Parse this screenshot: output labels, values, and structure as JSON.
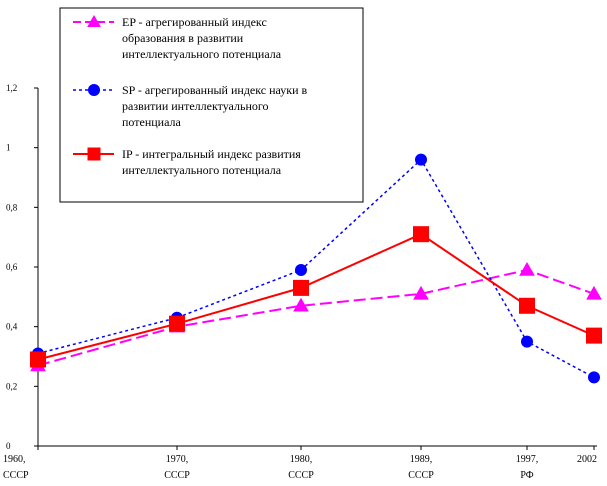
{
  "chart_data": {
    "type": "line",
    "title": "",
    "xlabel": "",
    "ylabel": "",
    "ylim": [
      0,
      1.2
    ],
    "y_ticks": [
      "0",
      "0,2",
      "0,4",
      "0,6",
      "0,8",
      "1",
      "1,2"
    ],
    "y_tick_values": [
      0,
      0.2,
      0.4,
      0.6,
      0.8,
      1.0,
      1.2
    ],
    "x": [
      1960,
      1970,
      1980,
      1989,
      1997,
      2002
    ],
    "categories": [
      {
        "year": "1960,",
        "region": "СССР"
      },
      {
        "year": "1970,",
        "region": "СССР"
      },
      {
        "year": "1980,",
        "region": "СССР"
      },
      {
        "year": "1989,",
        "region": "СССР"
      },
      {
        "year": "1997,",
        "region": "РФ"
      },
      {
        "year": "2002",
        "region": ""
      }
    ],
    "series": [
      {
        "name": "EP",
        "legend_lines": [
          "EP - агрегированный индекс",
          "образования в развитии",
          "интеллектуального потенциала"
        ],
        "color": "#ff00ff",
        "marker": "triangle",
        "dash": "dashed-long",
        "values": [
          0.27,
          0.4,
          0.47,
          0.51,
          0.59,
          0.51
        ]
      },
      {
        "name": "SP",
        "legend_lines": [
          "SP - агрегированный индекс науки в",
          "развитии интеллектуального",
          "потенциала"
        ],
        "color": "#0000ff",
        "marker": "circle",
        "dash": "dotted",
        "values": [
          0.31,
          0.43,
          0.59,
          0.96,
          0.35,
          0.23
        ]
      },
      {
        "name": "IP",
        "legend_lines": [
          "IP - интегральный индекс развития",
          "интеллектуального потенциала"
        ],
        "color": "#ff0000",
        "marker": "square",
        "dash": "solid",
        "values": [
          0.29,
          0.41,
          0.53,
          0.71,
          0.47,
          0.37
        ]
      }
    ]
  }
}
